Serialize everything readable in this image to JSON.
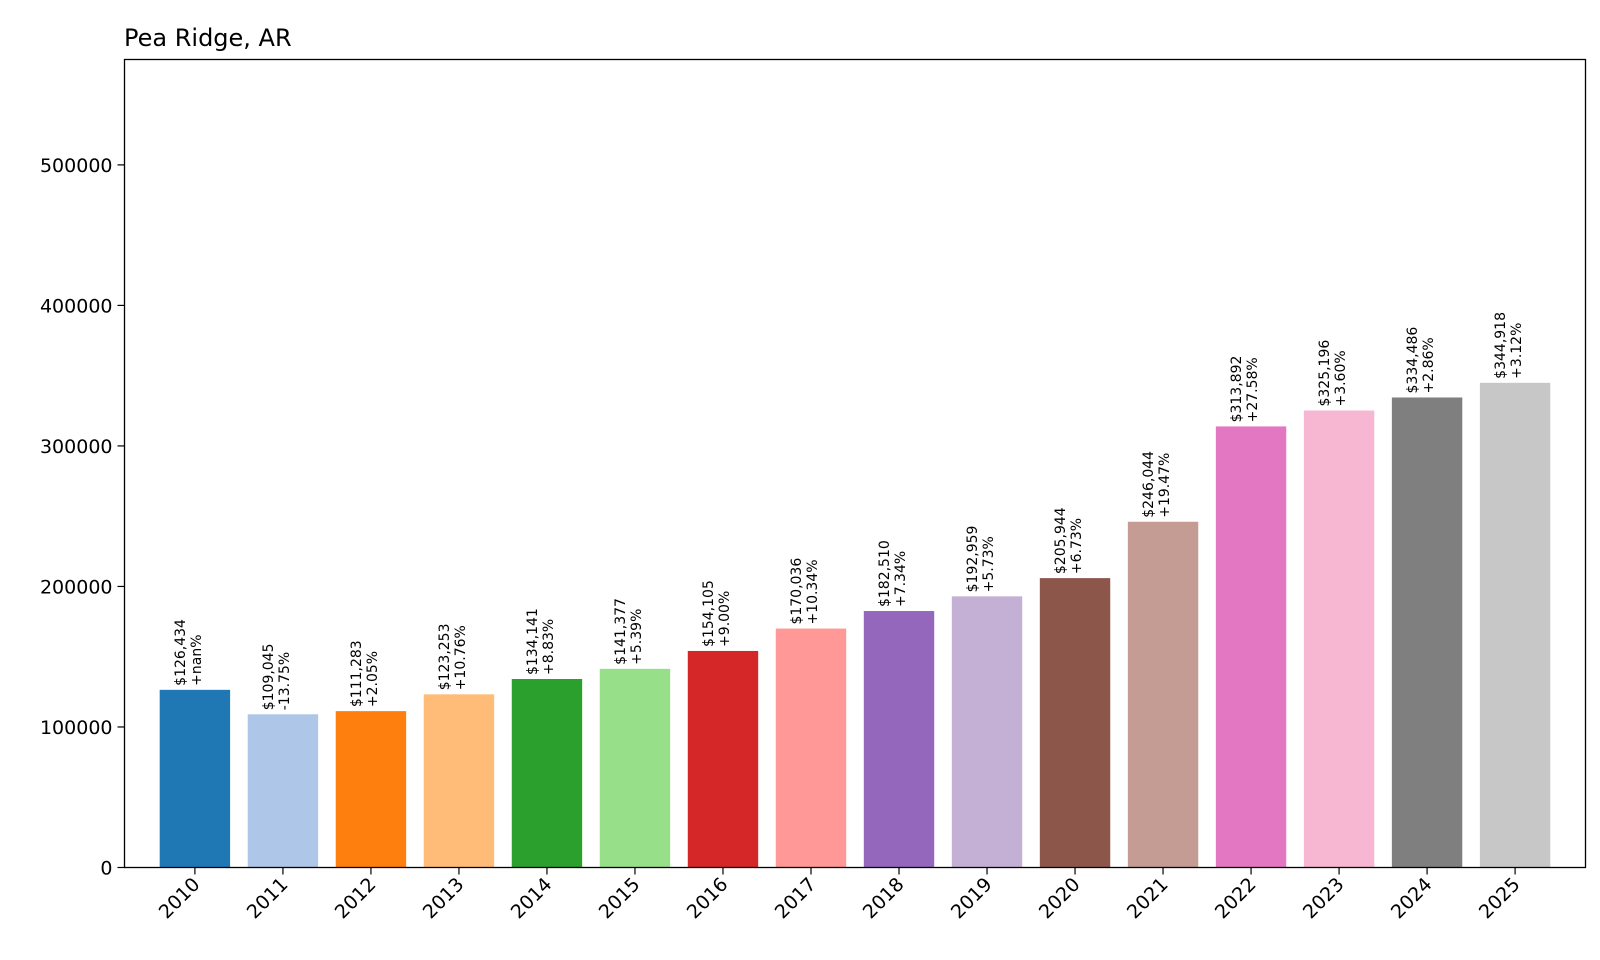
{
  "chart_data": {
    "type": "bar",
    "title": "Pea Ridge, AR",
    "xlabel": "",
    "ylabel": "",
    "ylim": [
      0,
      575000
    ],
    "yticks": [
      0,
      100000,
      200000,
      300000,
      400000,
      500000
    ],
    "ytick_labels": [
      "0",
      "100000",
      "200000",
      "300000",
      "400000",
      "500000"
    ],
    "grid": false,
    "categories": [
      "2010",
      "2011",
      "2012",
      "2013",
      "2014",
      "2015",
      "2016",
      "2017",
      "2018",
      "2019",
      "2020",
      "2021",
      "2022",
      "2023",
      "2024",
      "2025"
    ],
    "values": [
      126434,
      109045,
      111283,
      123253,
      134141,
      141377,
      154105,
      170036,
      182510,
      192959,
      205944,
      246044,
      313892,
      325196,
      334486,
      344918
    ],
    "value_labels": [
      "$126,434",
      "$109,045",
      "$111,283",
      "$123,253",
      "$134,141",
      "$141,377",
      "$154,105",
      "$170,036",
      "$182,510",
      "$192,959",
      "$205,944",
      "$246,044",
      "$313,892",
      "$325,196",
      "$334,486",
      "$344,918"
    ],
    "change_labels": [
      "+nan%",
      "-13.75%",
      "+2.05%",
      "+10.76%",
      "+8.83%",
      "+5.39%",
      "+9.00%",
      "+10.34%",
      "+7.34%",
      "+5.73%",
      "+6.73%",
      "+19.47%",
      "+27.58%",
      "+3.60%",
      "+2.86%",
      "+3.12%"
    ],
    "colors": [
      "#1f77b4",
      "#aec7e8",
      "#ff7f0e",
      "#ffbb78",
      "#2ca02c",
      "#98df8a",
      "#d62728",
      "#ff9896",
      "#9467bd",
      "#c5b0d5",
      "#8c564b",
      "#c49c94",
      "#e377c2",
      "#f7b6d2",
      "#7f7f7f",
      "#c7c7c7"
    ]
  }
}
